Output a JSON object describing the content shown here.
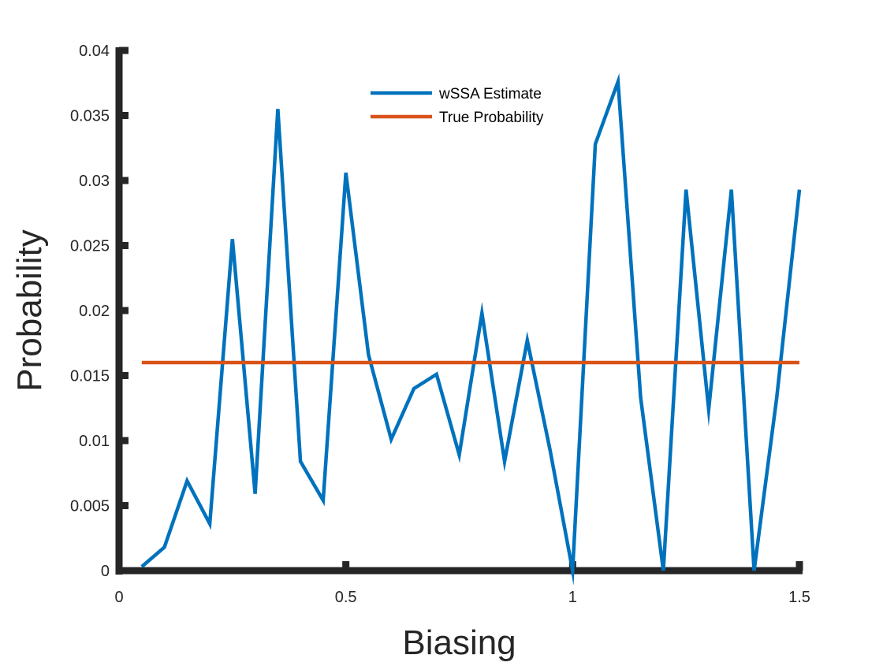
{
  "chart_data": {
    "type": "line",
    "title": "",
    "xlabel": "Biasing",
    "ylabel": "Probability",
    "xlim": [
      0,
      1.5
    ],
    "ylim": [
      0,
      0.04
    ],
    "x_ticks": [
      0,
      0.5,
      1,
      1.5
    ],
    "x_tick_labels": [
      "0",
      "0.5",
      "1",
      "1.5"
    ],
    "y_ticks": [
      0,
      0.005,
      0.01,
      0.015,
      0.02,
      0.025,
      0.03,
      0.035,
      0.04
    ],
    "y_tick_labels": [
      "0",
      "0.005",
      "0.01",
      "0.015",
      "0.02",
      "0.025",
      "0.03",
      "0.035",
      "0.04"
    ],
    "grid": false,
    "legend_position": "top-center",
    "series": [
      {
        "name": "wSSA Estimate",
        "color": "#0072BD",
        "x": [
          0.05,
          0.1,
          0.15,
          0.2,
          0.25,
          0.3,
          0.35,
          0.4,
          0.45,
          0.5,
          0.55,
          0.6,
          0.65,
          0.7,
          0.75,
          0.8,
          0.85,
          0.9,
          0.95,
          1.0,
          1.05,
          1.1,
          1.15,
          1.2,
          1.25,
          1.3,
          1.35,
          1.4,
          1.45,
          1.5
        ],
        "y": [
          0.0003,
          0.0018,
          0.0069,
          0.0036,
          0.0255,
          0.0059,
          0.0355,
          0.0084,
          0.0054,
          0.0306,
          0.0166,
          0.0101,
          0.014,
          0.0151,
          0.0089,
          0.0198,
          0.0084,
          0.0177,
          0.0093,
          0.0,
          0.0328,
          0.0376,
          0.0133,
          0.0,
          0.0293,
          0.0124,
          0.0293,
          0.0,
          0.0133,
          0.0293
        ]
      },
      {
        "name": "True Probability",
        "color": "#D95319",
        "x": [
          0.05,
          1.5
        ],
        "y": [
          0.016,
          0.016
        ]
      }
    ]
  }
}
